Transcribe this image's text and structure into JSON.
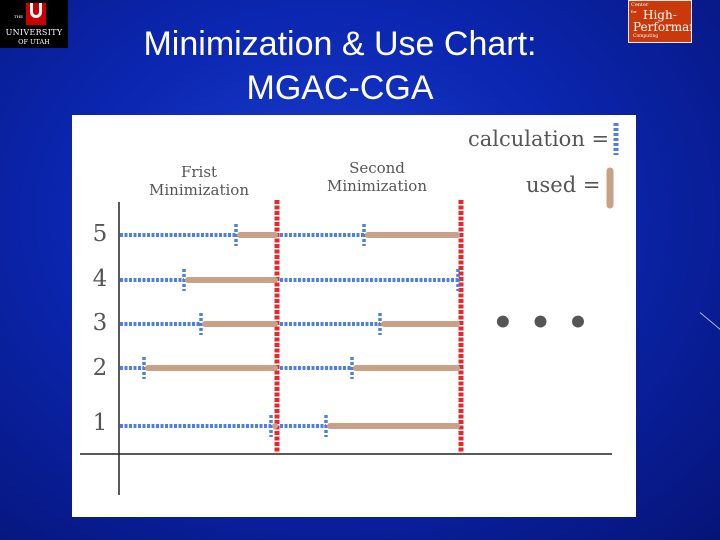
{
  "title": {
    "line1": "Minimization & Use Chart:",
    "line2": "MGAC-CGA"
  },
  "logos": {
    "left": {
      "the": "THE",
      "line1": "UNIVERSITY",
      "line2": "OF UTAH"
    },
    "right": {
      "line1": "Center",
      "line2": "for",
      "line3": "High-",
      "line4": "Performance",
      "line5": "Computing"
    }
  },
  "diagram": {
    "legend": {
      "calculation": "calculation =",
      "used": "used ="
    },
    "headers": {
      "first": [
        "Frist",
        "Minimization"
      ],
      "second": [
        "Second",
        "Minimization"
      ]
    },
    "ellipsis": "• • •",
    "colors": {
      "calculation": "#4f7fe0",
      "used": "#c9a187",
      "boundary": "#e8262c",
      "axis": "#222222"
    },
    "rows": [
      {
        "label": "5"
      },
      {
        "label": "4"
      },
      {
        "label": "3"
      },
      {
        "label": "2"
      },
      {
        "label": "1"
      }
    ]
  }
}
